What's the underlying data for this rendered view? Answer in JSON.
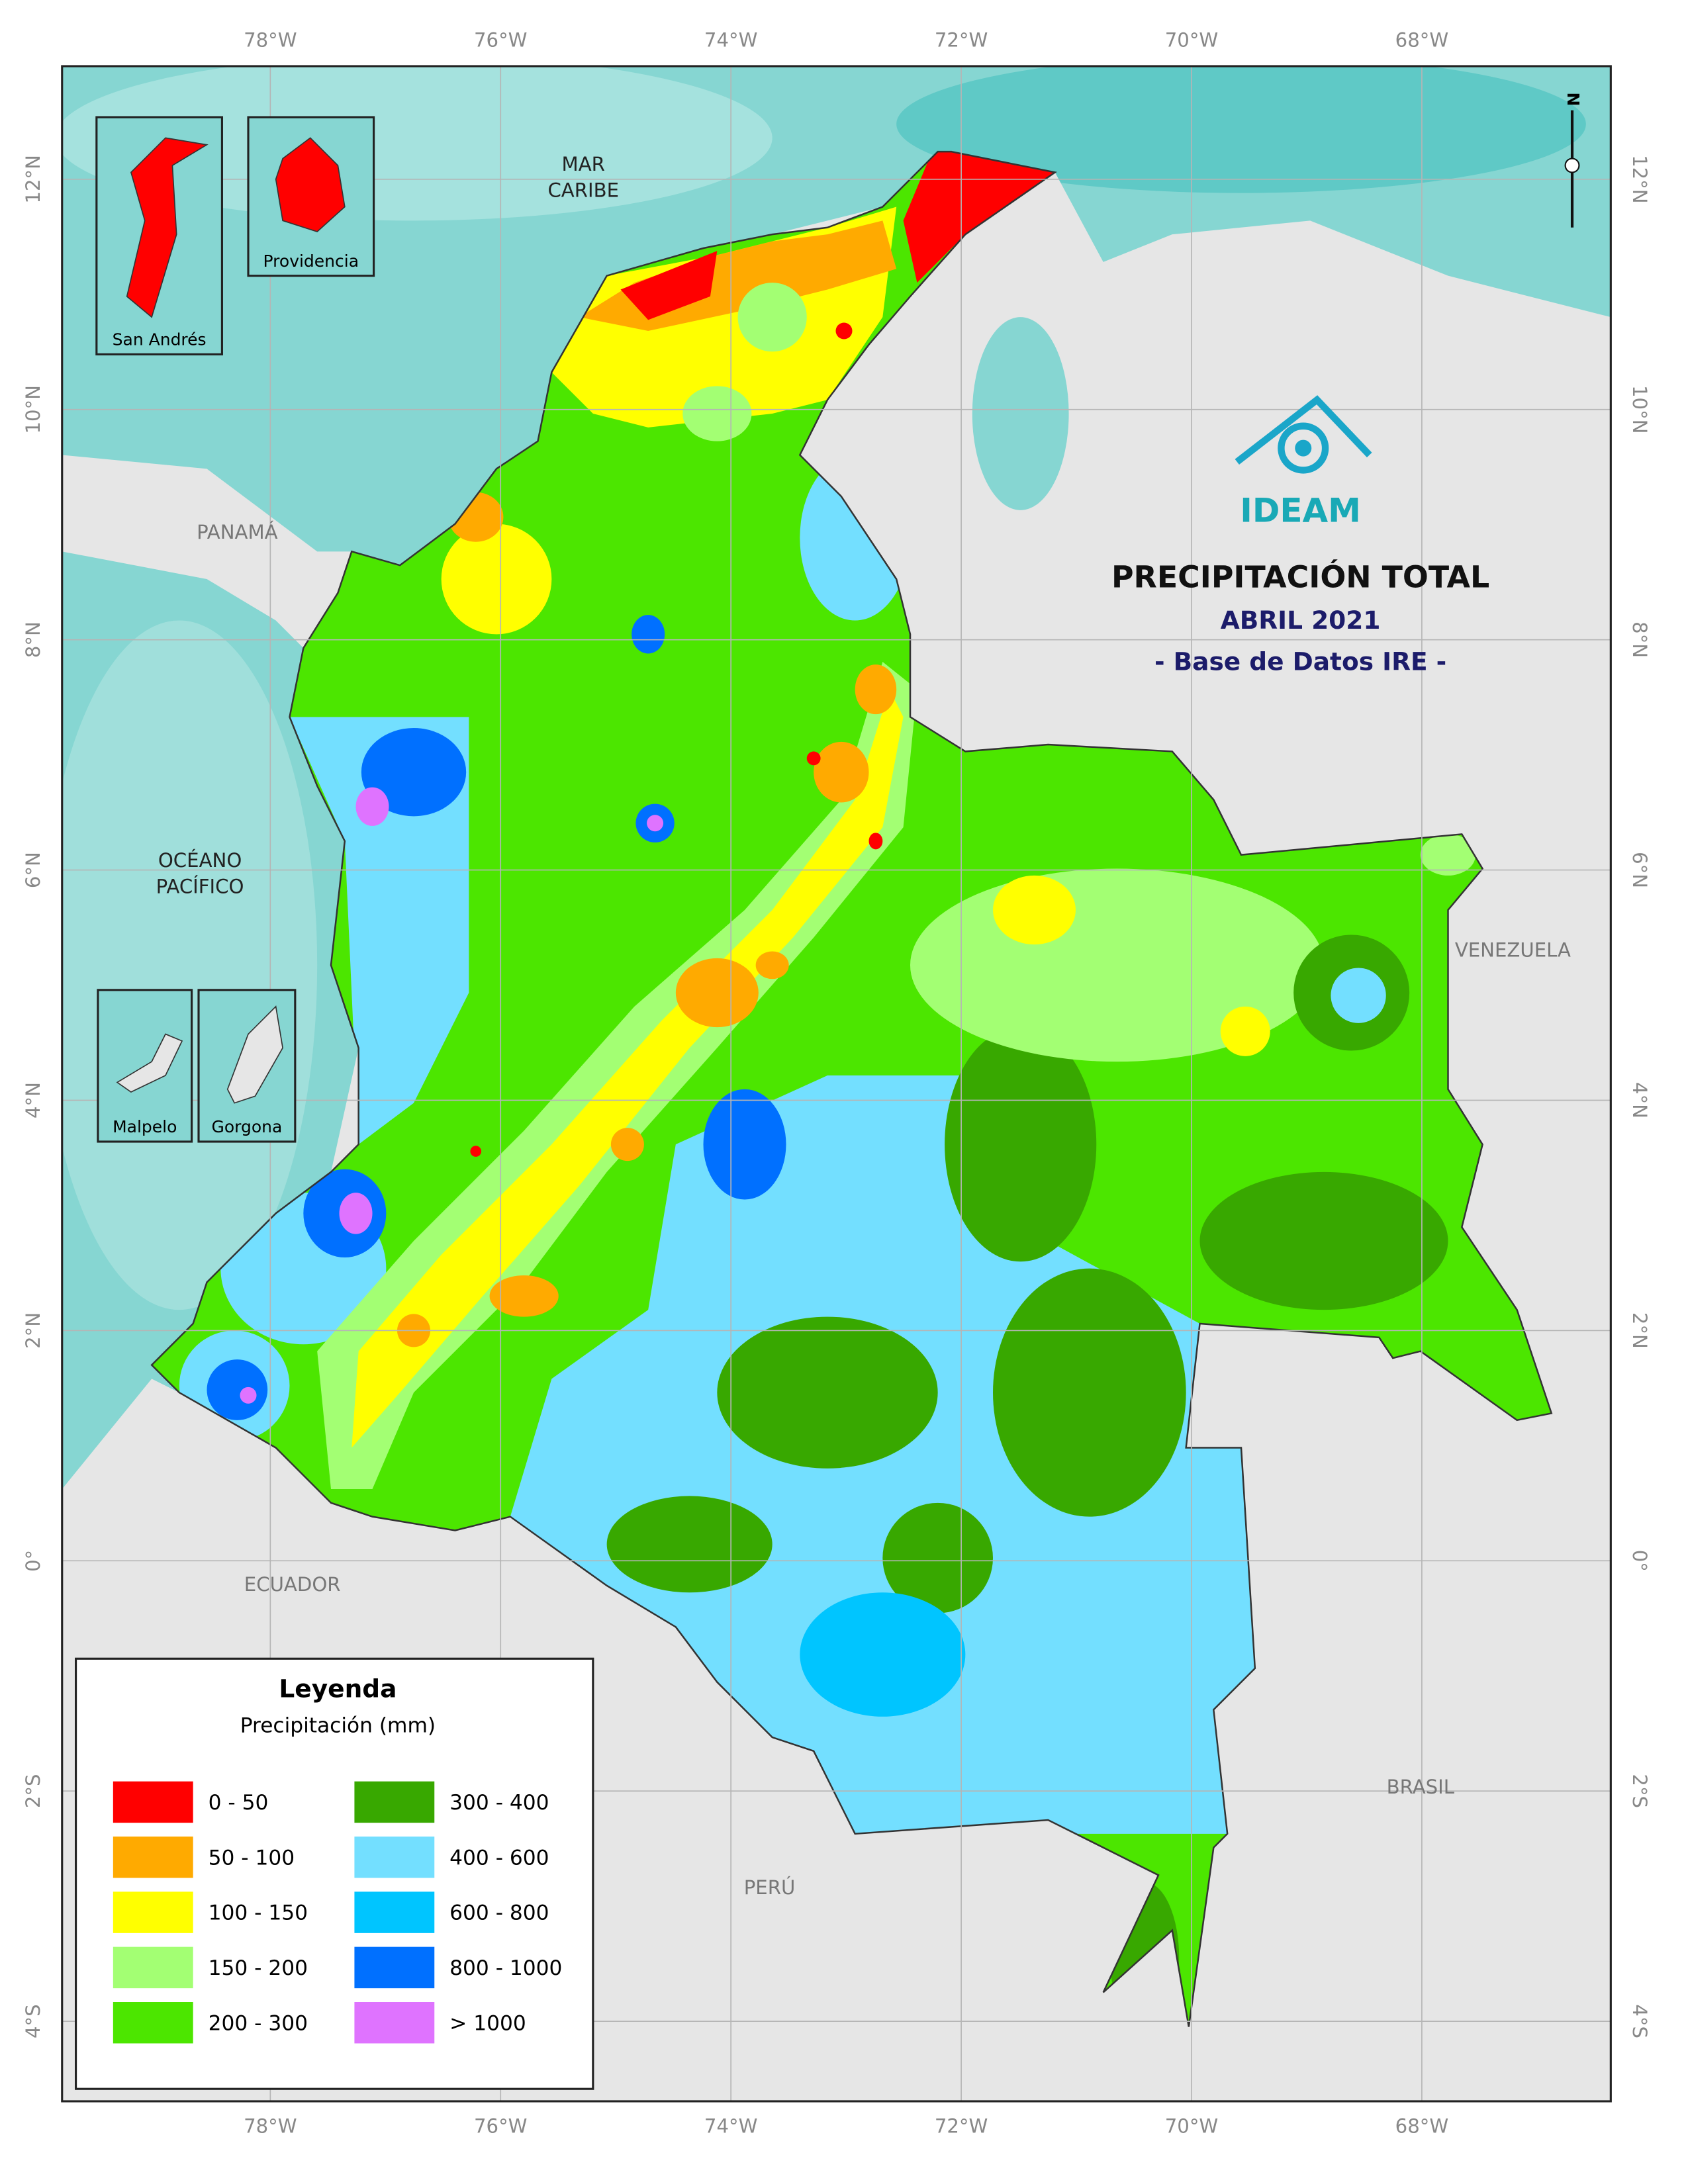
{
  "title": "PRECIPITACIÓN TOTAL",
  "subtitle": "ABRIL 2021",
  "source": "- Base de Datos IRE -",
  "logo": "IDEAM",
  "north_label": "N",
  "longitude_labels": [
    "78°W",
    "76°W",
    "74°W",
    "72°W",
    "70°W",
    "68°W"
  ],
  "latitude_labels": [
    "12°N",
    "10°N",
    "8°N",
    "6°N",
    "4°N",
    "2°N",
    "0°",
    "2°S",
    "4°S"
  ],
  "place_labels": [
    {
      "lines": [
        "MAR",
        "CARIBE"
      ]
    },
    {
      "lines": [
        "OCÉANO",
        "PACÍFICO"
      ]
    },
    {
      "lines": [
        "PANAMÁ"
      ]
    },
    {
      "lines": [
        "VENEZUELA"
      ]
    },
    {
      "lines": [
        "ECUADOR"
      ]
    },
    {
      "lines": [
        "PERÚ"
      ]
    },
    {
      "lines": [
        "BRASIL"
      ]
    }
  ],
  "insets": [
    "San Andrés",
    "Providencia",
    "Malpelo",
    "Gorgona"
  ],
  "legend": {
    "title": "Leyenda",
    "subtitle": "Precipitación (mm)",
    "classes": [
      {
        "label": "0 - 50",
        "color": "#ff0000"
      },
      {
        "label": "50 - 100",
        "color": "#ffaa00"
      },
      {
        "label": "100 - 150",
        "color": "#ffff00"
      },
      {
        "label": "150 - 200",
        "color": "#a3ff73"
      },
      {
        "label": "200 - 300",
        "color": "#4ce600"
      },
      {
        "label": "300 - 400",
        "color": "#38a800"
      },
      {
        "label": "400 - 600",
        "color": "#73dfff"
      },
      {
        "label": "600 - 800",
        "color": "#00c5ff"
      },
      {
        "label": "800 - 1000",
        "color": "#0070ff"
      },
      {
        "label": "> 1000",
        "color": "#df73ff"
      }
    ]
  }
}
